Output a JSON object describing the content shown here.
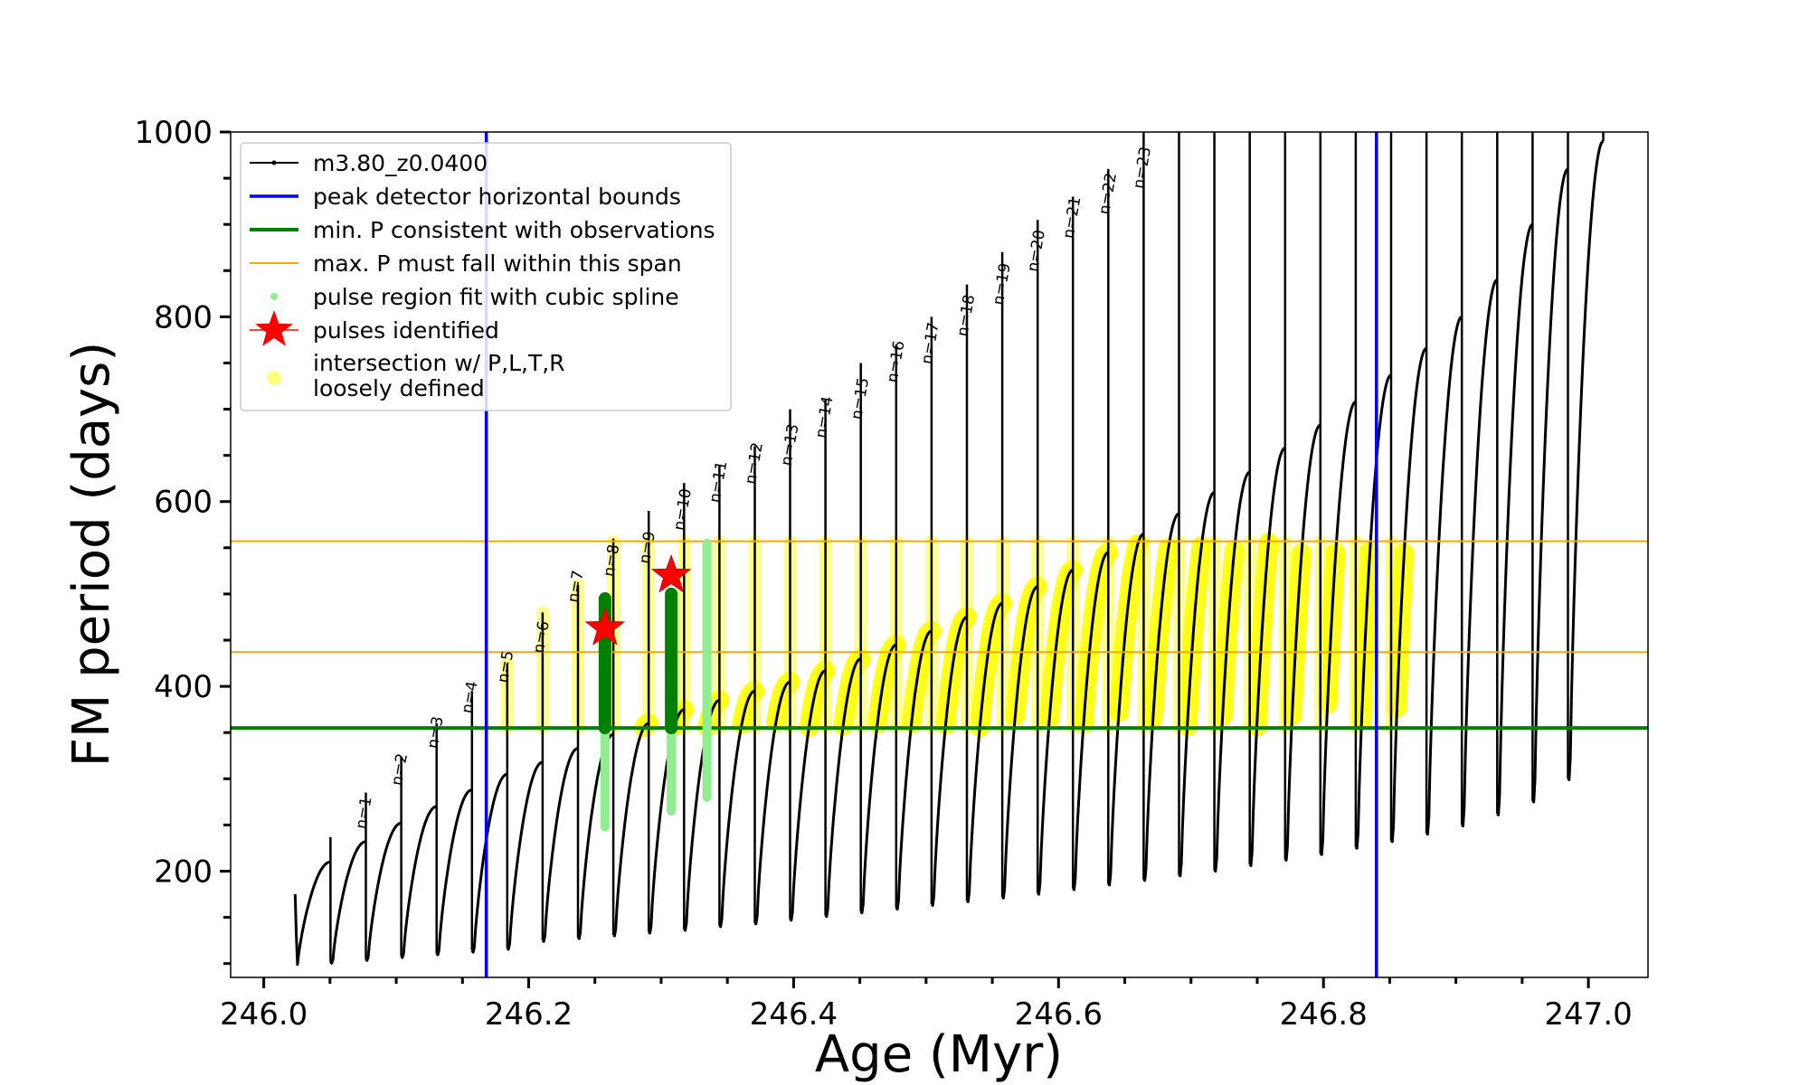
{
  "chart_data": {
    "type": "line",
    "xlabel": "Age (Myr)",
    "ylabel": "FM period (days)",
    "xlim": [
      245.975,
      247.045
    ],
    "ylim": [
      85,
      1000
    ],
    "xticks": [
      246.0,
      246.2,
      246.4,
      246.6,
      246.8,
      247.0
    ],
    "xtick_labels": [
      "246.0",
      "246.2",
      "246.4",
      "246.6",
      "246.8",
      "247.0"
    ],
    "yticks": [
      200,
      400,
      600,
      800,
      1000
    ],
    "ytick_labels": [
      "200",
      "400",
      "600",
      "800",
      "1000"
    ],
    "grid": false,
    "legend_position": "top-left",
    "colors": {
      "model": "#000000",
      "bounds": "#0000ff",
      "min_p": "#008000",
      "max_p_span": "#ffa500",
      "spline": "#90ee90",
      "pulse_star": "#ff0000",
      "intersection": "#ffff00"
    },
    "legend": [
      {
        "key": "model",
        "label": "m3.80_z0.0400"
      },
      {
        "key": "bounds",
        "label": "peak detector horizontal bounds"
      },
      {
        "key": "min_p",
        "label": "min. P consistent with observations"
      },
      {
        "key": "max_p_span",
        "label": "max. P must fall within this span"
      },
      {
        "key": "spline",
        "label": "pulse region fit with cubic spline"
      },
      {
        "key": "pulse_star",
        "label": "pulses identified"
      },
      {
        "key": "intersection",
        "label": "intersection w/ P,L,T,R",
        "label2": "loosely defined"
      }
    ],
    "series": [
      {
        "name": "m3.80_z0.0400",
        "first_pulse_age": 246.0237,
        "pulse_spacing_myr": 0.02669,
        "pulse_count": 37,
        "pulse_start_period": [
          175,
          102,
          105,
          108,
          111,
          114,
          117,
          125,
          128,
          131,
          134,
          137,
          141,
          144,
          148,
          152,
          156,
          160,
          164,
          168,
          172,
          176,
          181,
          186,
          191,
          196,
          201,
          207,
          213,
          219,
          226,
          233,
          241,
          250,
          262,
          276,
          300
        ],
        "pulse_min_period": [
          95,
          99,
          102,
          105,
          108,
          111,
          114,
          123,
          126,
          129,
          132,
          135,
          139,
          142,
          146,
          150,
          154,
          158,
          162,
          166,
          170,
          174,
          179,
          184,
          189,
          194,
          199,
          205,
          211,
          217,
          224,
          231,
          239,
          248,
          260,
          274,
          298
        ],
        "pulse_peak_period": [
          210,
          232,
          252,
          270,
          288,
          305,
          318,
          333,
          348,
          360,
          375,
          385,
          395,
          405,
          417,
          430,
          445,
          460,
          475,
          490,
          508,
          526,
          545,
          565,
          587,
          610,
          632,
          658,
          683,
          708,
          737,
          766,
          800,
          840,
          900,
          960,
          990
        ],
        "spike_top_period": [
          237,
          285,
          324,
          360,
          395,
          425,
          480,
          510,
          560,
          590,
          620,
          640,
          660,
          700,
          710,
          750,
          770,
          800,
          835,
          870,
          905,
          930,
          960,
          1000,
          1000,
          1000,
          1000,
          1000,
          1000,
          1000,
          1000,
          1000,
          1000,
          1000,
          1000,
          1000,
          1000
        ]
      }
    ],
    "pulse_labels": [
      {
        "n": "n=1",
        "age": 246.077,
        "period": 245
      },
      {
        "n": "n=2",
        "age": 246.104,
        "period": 292
      },
      {
        "n": "n=3",
        "age": 246.131,
        "period": 332
      },
      {
        "n": "n=4",
        "age": 246.157,
        "period": 370
      },
      {
        "n": "n=5",
        "age": 246.184,
        "period": 403
      },
      {
        "n": "n=6",
        "age": 246.211,
        "period": 435
      },
      {
        "n": "n=7",
        "age": 246.237,
        "period": 490
      },
      {
        "n": "n=8",
        "age": 246.264,
        "period": 518
      },
      {
        "n": "n=9",
        "age": 246.291,
        "period": 532
      },
      {
        "n": "n=10",
        "age": 246.317,
        "period": 568
      },
      {
        "n": "n=11",
        "age": 246.344,
        "period": 598
      },
      {
        "n": "n=12",
        "age": 246.371,
        "period": 618
      },
      {
        "n": "n=13",
        "age": 246.398,
        "period": 638
      },
      {
        "n": "n=14",
        "age": 246.424,
        "period": 668
      },
      {
        "n": "n=15",
        "age": 246.451,
        "period": 688
      },
      {
        "n": "n=16",
        "age": 246.478,
        "period": 728
      },
      {
        "n": "n=17",
        "age": 246.504,
        "period": 748
      },
      {
        "n": "n=18",
        "age": 246.531,
        "period": 778
      },
      {
        "n": "n=19",
        "age": 246.558,
        "period": 812
      },
      {
        "n": "n=20",
        "age": 246.584,
        "period": 848
      },
      {
        "n": "n=21",
        "age": 246.611,
        "period": 884
      },
      {
        "n": "n=22",
        "age": 246.638,
        "period": 910
      },
      {
        "n": "n=23",
        "age": 246.664,
        "period": 938
      }
    ],
    "peak_detector_bounds": [
      246.168,
      246.84
    ],
    "min_period_observed": 355,
    "max_period_span": [
      437,
      557
    ],
    "spline_regions": [
      {
        "age": 246.2576,
        "period_range": [
          248,
          495
        ]
      },
      {
        "age": 246.3076,
        "period_range": [
          265,
          500
        ]
      },
      {
        "age": 246.3346,
        "period_range": [
          280,
          555
        ]
      }
    ],
    "green_thick_regions": [
      {
        "age": 246.2576,
        "period_range": [
          355,
          495
        ]
      },
      {
        "age": 246.3076,
        "period_range": [
          355,
          500
        ]
      }
    ],
    "pulses_identified": [
      {
        "age": 246.2576,
        "period": 463
      },
      {
        "age": 246.3076,
        "period": 520
      }
    ],
    "intersection_region": {
      "age_range": [
        246.165,
        246.87
      ],
      "period_range": [
        355,
        557
      ]
    }
  }
}
